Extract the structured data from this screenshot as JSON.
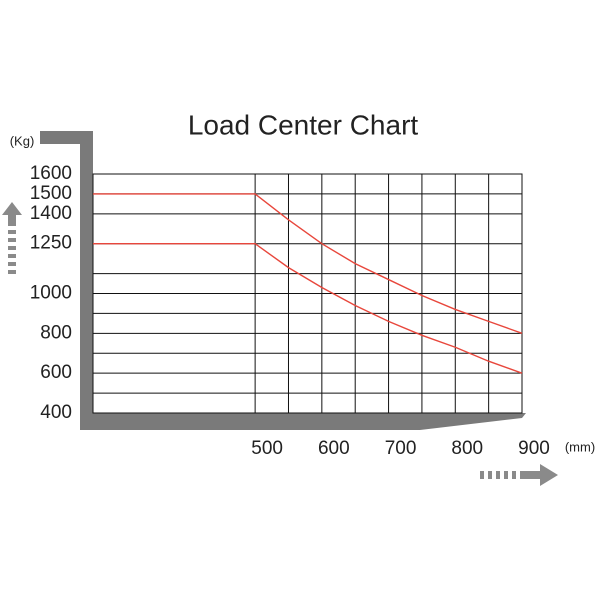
{
  "chart_data": {
    "type": "line",
    "title": "Load Center Chart",
    "y_unit": "(Kg)",
    "x_unit": "(mm)",
    "x": [
      257,
      500,
      550,
      600,
      650,
      700,
      750,
      800,
      850,
      900
    ],
    "series": [
      {
        "color": "#e8473c",
        "values": [
          1500,
          1500,
          1370,
          1250,
          1150,
          1070,
          990,
          920,
          860,
          800
        ]
      },
      {
        "color": "#e8473c",
        "values": [
          1250,
          1250,
          1130,
          1030,
          940,
          860,
          790,
          730,
          660,
          600
        ]
      }
    ],
    "xlim": [
      257,
      900
    ],
    "xticks": [
      500,
      600,
      700,
      800,
      900
    ],
    "xgrid": [
      500,
      550,
      600,
      650,
      700,
      750,
      800,
      850,
      900
    ],
    "ylim": [
      400,
      1600
    ],
    "yticks": [
      400,
      600,
      800,
      1000,
      1250,
      1400,
      1500,
      1600
    ],
    "ygrid": [
      500,
      600,
      700,
      800,
      900,
      1000,
      1100,
      1250,
      1400,
      1500,
      1600
    ],
    "grid": true
  }
}
